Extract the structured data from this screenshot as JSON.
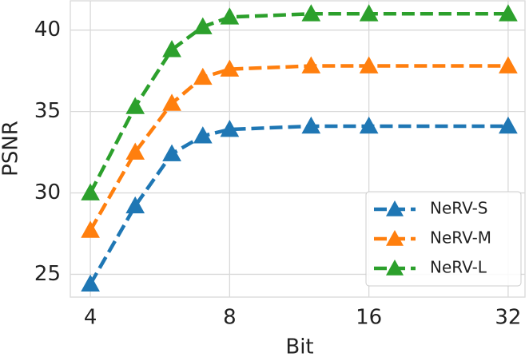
{
  "chart_data": {
    "type": "line",
    "x_label": "Bit",
    "y_label": "PSNR",
    "x": [
      4,
      5,
      6,
      7,
      8,
      12,
      16,
      32
    ],
    "series": [
      {
        "name": "NeRV-S",
        "color": "#1f77b4",
        "values": [
          24.4,
          29.2,
          32.4,
          33.5,
          33.9,
          34.1,
          34.1,
          34.1
        ]
      },
      {
        "name": "NeRV-M",
        "color": "#ff7f0e",
        "values": [
          27.7,
          32.5,
          35.5,
          37.1,
          37.6,
          37.8,
          37.8,
          37.8
        ]
      },
      {
        "name": "NeRV-L",
        "color": "#2ca02c",
        "values": [
          30.0,
          35.3,
          38.8,
          40.2,
          40.8,
          41.0,
          41.0,
          41.0
        ]
      }
    ],
    "xscale": "log2",
    "xlim": [
      3.62,
      34.8
    ],
    "xticks": [
      4,
      8,
      16,
      32
    ],
    "ylim": [
      23.6,
      41.8
    ],
    "yticks": [
      25,
      30,
      35,
      40
    ],
    "grid": true,
    "legend": "lower right"
  }
}
